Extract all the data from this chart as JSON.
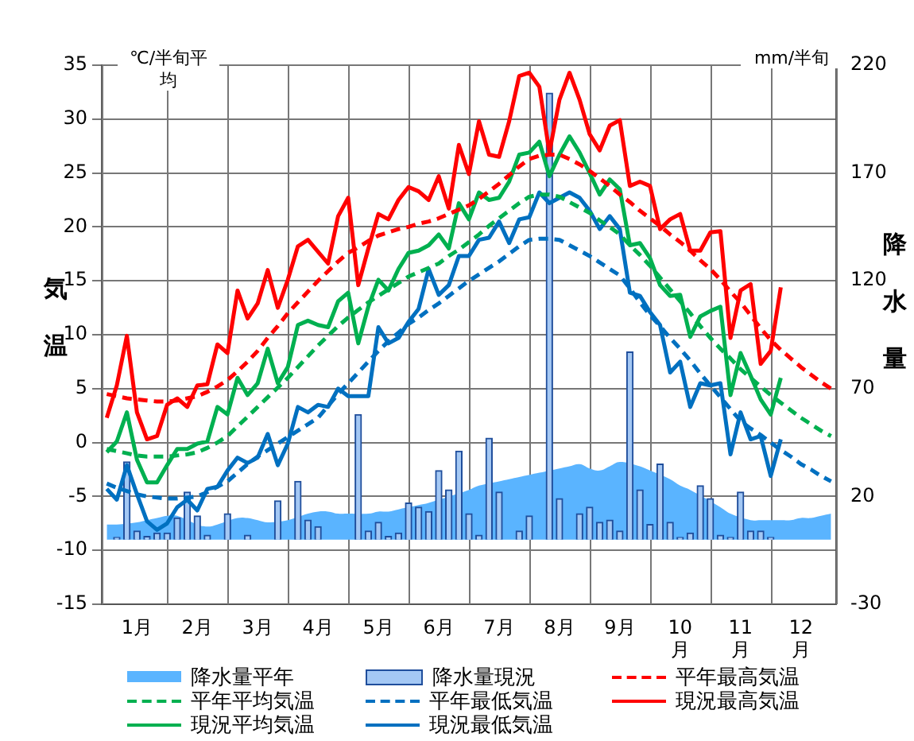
{
  "chart_data": {
    "type": "line",
    "ylabel": "気温",
    "y2label": "降水量",
    "annotations": [
      "℃/半旬平均",
      "mm/半旬"
    ],
    "categories": [
      null,
      null,
      null,
      "1月",
      null,
      null,
      null,
      null,
      null,
      "2月",
      null,
      null,
      null,
      null,
      null,
      "3月",
      null,
      null,
      null,
      null,
      null,
      "4月",
      null,
      null,
      null,
      null,
      null,
      "5月",
      null,
      null,
      null,
      null,
      null,
      "6月",
      null,
      null,
      null,
      null,
      null,
      "7月",
      null,
      null,
      null,
      null,
      null,
      "8月",
      null,
      null,
      null,
      null,
      null,
      "9月",
      null,
      null,
      null,
      null,
      null,
      "10月",
      null,
      null,
      null,
      null,
      null,
      "11月",
      null,
      null,
      null,
      null,
      null,
      "12月",
      null,
      null,
      null
    ],
    "ylim": [
      -15,
      35
    ],
    "yticks": [
      -15,
      -10,
      -5,
      0,
      5,
      10,
      15,
      20,
      25,
      30,
      35
    ],
    "y2lim": [
      -30,
      220
    ],
    "y2ticks": [
      -30,
      20,
      70,
      120,
      170,
      220
    ],
    "grid": true,
    "legend": "bottom",
    "marker": "none",
    "series": [
      {
        "name": "降水量平年",
        "type": "area",
        "axis": "y2",
        "color": "#5ab4ff",
        "values": [
          7,
          7,
          null,
          8,
          9,
          10,
          11,
          11,
          null,
          7,
          6,
          7,
          null,
          10,
          10,
          9,
          8,
          null,
          9,
          null,
          12,
          13,
          13,
          12,
          12,
          null,
          12,
          13,
          13,
          14,
          null,
          16,
          17,
          null,
          null,
          null,
          23,
          25,
          null,
          27,
          28,
          29,
          30,
          31,
          null,
          33,
          34,
          35,
          33,
          32,
          34,
          36,
          null,
          34,
          32,
          null,
          28,
          25,
          23,
          null,
          null,
          15,
          12,
          null,
          9,
          9,
          9,
          9,
          9,
          10,
          10,
          11,
          12
        ]
      },
      {
        "name": "降水量現況",
        "type": "bar",
        "axis": "y2",
        "color": "#a4c8f4",
        "values": [
          null,
          1,
          36,
          4,
          1.5,
          3,
          3,
          10,
          22,
          11,
          2,
          null,
          12,
          null,
          2,
          null,
          null,
          18,
          null,
          27,
          9,
          6,
          null,
          null,
          null,
          58,
          4,
          8,
          1.5,
          3,
          17,
          15,
          13,
          32,
          23,
          41,
          12,
          2,
          47,
          22,
          null,
          4,
          11,
          null,
          207,
          19,
          null,
          12,
          15,
          8,
          9,
          4,
          87,
          23,
          7,
          35,
          8,
          1,
          3,
          25,
          19,
          2,
          1,
          22,
          4,
          4,
          1,
          null,
          null,
          null,
          null,
          null,
          null
        ]
      },
      {
        "name": "平年最高気温",
        "line_style": "dashed",
        "color": "#ff0000",
        "values": [
          4.5,
          4.3,
          4.1,
          4.0,
          3.9,
          3.8,
          3.8,
          3.9,
          4.1,
          4.3,
          4.7,
          5.2,
          5.8,
          6.6,
          7.5,
          8.5,
          9.7,
          10.8,
          12.0,
          13.0,
          14.0,
          15.0,
          15.9,
          16.8,
          17.6,
          18.1,
          18.7,
          19.2,
          19.5,
          19.8,
          20.0,
          20.3,
          20.5,
          20.8,
          21.2,
          21.6,
          22.0,
          22.6,
          23.3,
          24.0,
          24.8,
          25.6,
          26.3,
          26.6,
          26.7,
          26.7,
          26.3,
          25.8,
          25.2,
          24.5,
          23.8,
          23.0,
          22.3,
          21.5,
          20.8,
          20.1,
          19.3,
          18.6,
          17.8,
          16.9,
          16.1,
          15.1,
          14.0,
          13.0,
          11.8,
          10.6,
          9.5,
          8.6,
          7.8,
          7.0,
          6.3,
          5.6,
          5.0
        ]
      },
      {
        "name": "平年平均気温",
        "line_style": "dashed",
        "color": "#00b050",
        "values": [
          -0.6,
          -0.8,
          -1.0,
          -1.2,
          -1.3,
          -1.3,
          -1.3,
          -1.2,
          -1.1,
          -0.9,
          -0.5,
          0.0,
          0.6,
          1.5,
          2.4,
          3.3,
          4.2,
          5.1,
          6.0,
          7.0,
          8.0,
          9.0,
          9.9,
          10.8,
          11.6,
          12.3,
          13.0,
          13.6,
          14.2,
          14.8,
          15.4,
          15.8,
          16.2,
          16.6,
          17.3,
          17.9,
          18.6,
          19.3,
          20.1,
          20.8,
          21.5,
          22.2,
          22.8,
          23.0,
          23.0,
          22.8,
          22.3,
          21.8,
          21.3,
          20.6,
          20.0,
          19.3,
          18.3,
          17.4,
          16.4,
          15.3,
          14.2,
          13.1,
          12.0,
          10.8,
          9.7,
          8.7,
          7.8,
          6.8,
          6.0,
          5.2,
          4.4,
          3.7,
          3.0,
          2.3,
          1.7,
          1.1,
          0.6
        ]
      },
      {
        "name": "平年最低気温",
        "line_style": "dashed",
        "color": "#0070c0",
        "values": [
          -3.8,
          -4.2,
          -4.5,
          -4.8,
          -5.0,
          -5.1,
          -5.2,
          -5.2,
          -5.1,
          -5.0,
          -4.6,
          -4.1,
          -3.6,
          -2.8,
          -2.0,
          -1.3,
          -0.7,
          -0.1,
          0.5,
          1.1,
          1.7,
          2.3,
          3.4,
          4.5,
          5.5,
          6.5,
          7.5,
          8.5,
          9.4,
          10.2,
          11.0,
          11.6,
          12.3,
          12.9,
          13.6,
          14.3,
          15.0,
          15.6,
          16.2,
          16.8,
          17.5,
          18.2,
          18.8,
          18.9,
          18.9,
          18.8,
          18.3,
          17.8,
          17.3,
          16.7,
          16.1,
          15.5,
          14.3,
          13.0,
          11.8,
          10.8,
          9.7,
          8.7,
          7.6,
          6.4,
          5.3,
          4.2,
          3.1,
          2.0,
          1.3,
          0.7,
          0.0,
          -0.7,
          -1.3,
          -2.0,
          -2.5,
          -3.1,
          -3.6
        ]
      },
      {
        "name": "現況最高気温",
        "line_style": "solid",
        "color": "#ff0000",
        "values": [
          2.3,
          5.3,
          9.9,
          2.8,
          0.3,
          0.6,
          3.5,
          4.1,
          3.3,
          5.3,
          5.4,
          9.1,
          8.3,
          14.1,
          11.5,
          12.9,
          16.0,
          12.5,
          15.1,
          18.2,
          18.8,
          17.7,
          16.6,
          21.0,
          22.7,
          14.6,
          18.0,
          21.2,
          20.7,
          22.5,
          23.7,
          23.3,
          22.5,
          24.7,
          21.7,
          27.6,
          24.9,
          29.8,
          26.7,
          26.5,
          29.8,
          34.0,
          34.3,
          33.0,
          26.9,
          31.8,
          34.3,
          31.8,
          28.6,
          27.1,
          29.4,
          29.9,
          23.8,
          24.2,
          23.8,
          19.8,
          20.7,
          21.2,
          17.8,
          17.8,
          19.5,
          19.6,
          9.7,
          14.1,
          14.7,
          7.3,
          8.5,
          14.4,
          null,
          null,
          null,
          null,
          null
        ]
      },
      {
        "name": "現況平均気温",
        "line_style": "solid",
        "color": "#00b050",
        "values": [
          -0.9,
          0.1,
          2.8,
          -1.6,
          -3.7,
          -3.7,
          -2.1,
          -0.6,
          -0.6,
          -0.1,
          0.1,
          3.3,
          2.6,
          6.0,
          4.4,
          5.5,
          8.7,
          5.5,
          7.0,
          10.9,
          11.3,
          10.9,
          10.7,
          13.1,
          13.9,
          9.2,
          12.6,
          15.1,
          14.1,
          16.1,
          17.6,
          17.8,
          18.3,
          19.3,
          18.0,
          22.2,
          20.7,
          23.2,
          22.5,
          22.7,
          24.2,
          26.7,
          26.9,
          27.9,
          24.7,
          26.7,
          28.4,
          26.9,
          25.0,
          23.0,
          24.4,
          23.5,
          18.3,
          18.5,
          17.1,
          14.6,
          13.6,
          13.7,
          9.8,
          11.7,
          12.2,
          12.6,
          4.4,
          8.3,
          6.2,
          4.0,
          2.6,
          6.0,
          null,
          null,
          null,
          null,
          null
        ]
      },
      {
        "name": "現況最低気温",
        "line_style": "solid",
        "color": "#0070c0",
        "values": [
          -4.3,
          -5.3,
          -2.1,
          -4.8,
          -7.3,
          -8.1,
          -7.5,
          -6.0,
          -5.3,
          -6.3,
          -4.3,
          -4.1,
          -2.6,
          -1.4,
          -1.9,
          -1.4,
          0.8,
          -2.1,
          -0.1,
          3.3,
          2.8,
          3.5,
          3.3,
          5.0,
          4.3,
          4.3,
          4.3,
          10.7,
          9.2,
          9.7,
          11.2,
          12.4,
          16.1,
          13.7,
          14.6,
          17.3,
          17.3,
          18.8,
          19.0,
          20.5,
          18.5,
          20.7,
          20.9,
          23.2,
          22.2,
          22.7,
          23.2,
          22.7,
          21.5,
          19.8,
          21.0,
          19.8,
          13.9,
          13.6,
          12.1,
          10.9,
          6.5,
          7.5,
          3.3,
          5.5,
          5.3,
          5.5,
          -1.1,
          2.8,
          0.3,
          0.6,
          -3.1,
          0.3,
          null,
          null,
          null,
          null,
          null
        ]
      }
    ]
  }
}
